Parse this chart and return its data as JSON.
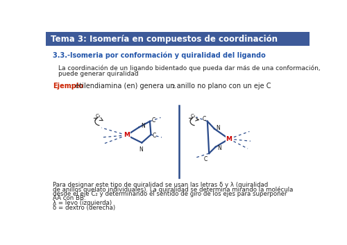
{
  "title": "Tema 3: Isomería en compuestos de coordinación",
  "title_bg": "#3d5a99",
  "title_color": "#ffffff",
  "subtitle": "3.3.-Isomeria por conformación y quiralidad del ligando",
  "subtitle_color": "#2255aa",
  "body_text1": "La coordinación de un ligando bidentado que pueda dar más de una conformación,",
  "body_text2": "puede generar quiralidad",
  "ejemplo_label": "Ejemplo",
  "ejemplo_color": "#cc2200",
  "ejemplo_rest": ": etilendiamina (en) genera un anillo no plano con un eje C",
  "ejemplo_sub": "2",
  "ejemplo_end": ".",
  "bottom_text1": "Para designar este tipo de quiralidad se usan las letras δ y λ (quiralidad",
  "bottom_text2": "de anillos quelato individuales). La quiralidad se determina mirando la molécula",
  "bottom_text3": "desde el eje C₂ y determinando el sentido de giro de los ejes para superponer",
  "bottom_text4": "AA con BB.",
  "bottom_text5": "λ = levo (izquierda)",
  "bottom_text6": "δ = dextro (derecha)",
  "line_color": "#2a4a8a",
  "dashed_color": "#2a4a8a",
  "M_color": "#cc0000",
  "divider_color": "#2a4a8a"
}
